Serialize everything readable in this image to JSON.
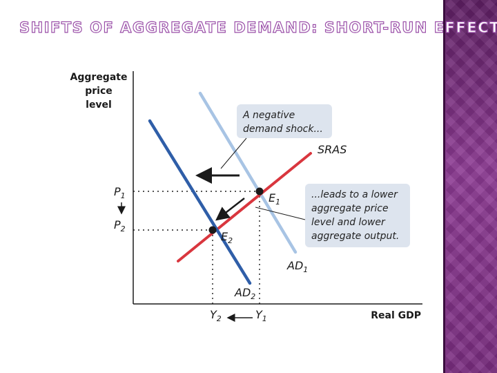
{
  "slide": {
    "title": "SHIFTS OF AGGREGATE DEMAND: SHORT-RUN EFFECTS"
  },
  "axes": {
    "y_title_line1": "Aggregate",
    "y_title_line2": "price",
    "y_title_line3": "level",
    "x_title": "Real GDP"
  },
  "curves": {
    "sras": "SRAS",
    "ad1": "AD",
    "ad1_sub": "1",
    "ad2": "AD",
    "ad2_sub": "2"
  },
  "points": {
    "e1": "E",
    "e1_sub": "1",
    "e2": "E",
    "e2_sub": "2"
  },
  "levels": {
    "p1": "P",
    "p1_sub": "1",
    "p2": "P",
    "p2_sub": "2",
    "y1": "Y",
    "y1_sub": "1",
    "y2": "Y",
    "y2_sub": "2"
  },
  "callouts": {
    "shock_line1": "A negative",
    "shock_line2": "demand shock...",
    "result_line1": "...leads to a lower",
    "result_line2": "aggregate price",
    "result_line3": "level and lower",
    "result_line4": "aggregate output."
  },
  "colors": {
    "sras": "#d9363e",
    "ad1": "#a8c4e4",
    "ad2": "#2f5ea8",
    "callout_bg": "#dde4ee",
    "band": "#7d2f83"
  }
}
